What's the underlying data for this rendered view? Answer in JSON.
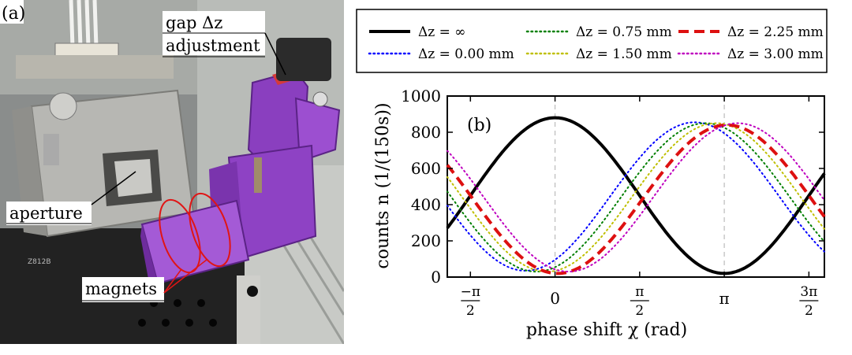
{
  "photo": {
    "panel_label": "(a)",
    "labels": {
      "gap_line1": "gap Δz",
      "gap_line2": "adjustment",
      "aperture": "aperture",
      "magnets": "magnets"
    },
    "stage_text": "Z812B"
  },
  "chart_data": {
    "type": "line",
    "panel_label": "(b)",
    "xlabel": "phase shift χ (rad)",
    "ylabel": "counts n (1/(150s))",
    "xlim": [
      -2.0,
      5.0
    ],
    "ylim": [
      0,
      1000
    ],
    "yticks": [
      0,
      200,
      400,
      600,
      800,
      1000
    ],
    "xticks": [
      {
        "value": -1.5708,
        "label": "−π / 2"
      },
      {
        "value": 0,
        "label": "0"
      },
      {
        "value": 1.5708,
        "label": "π / 2"
      },
      {
        "value": 3.1416,
        "label": "π"
      },
      {
        "value": 4.7124,
        "label": "3π / 2"
      }
    ],
    "vlines": [
      0,
      3.1416
    ],
    "grid": false,
    "legend_position": "top (above plot)",
    "series": [
      {
        "name": "Δz = ∞",
        "color": "#000000",
        "style": "solid",
        "mean": 450,
        "amplitude": 430,
        "phase_offset": 0,
        "sign": -1
      },
      {
        "name": "Δz = 0.00 mm",
        "color": "#0000ff",
        "style": "dotted",
        "mean": 445,
        "amplitude": 410,
        "phase_offset": -0.55,
        "sign": 1
      },
      {
        "name": "Δz = 0.75 mm",
        "color": "#007f00",
        "style": "dotted",
        "mean": 440,
        "amplitude": 410,
        "phase_offset": -0.35,
        "sign": 1
      },
      {
        "name": "Δz = 1.50 mm",
        "color": "#bfbf00",
        "style": "dotted",
        "mean": 440,
        "amplitude": 410,
        "phase_offset": -0.15,
        "sign": 1
      },
      {
        "name": "Δz = 2.25 mm",
        "color": "#dd1010",
        "style": "dashed",
        "mean": 430,
        "amplitude": 410,
        "phase_offset": 0.05,
        "sign": 1
      },
      {
        "name": "Δz = 3.00 mm",
        "color": "#bf00bf",
        "style": "dotted",
        "mean": 440,
        "amplitude": 410,
        "phase_offset": 0.25,
        "sign": 1
      }
    ]
  }
}
